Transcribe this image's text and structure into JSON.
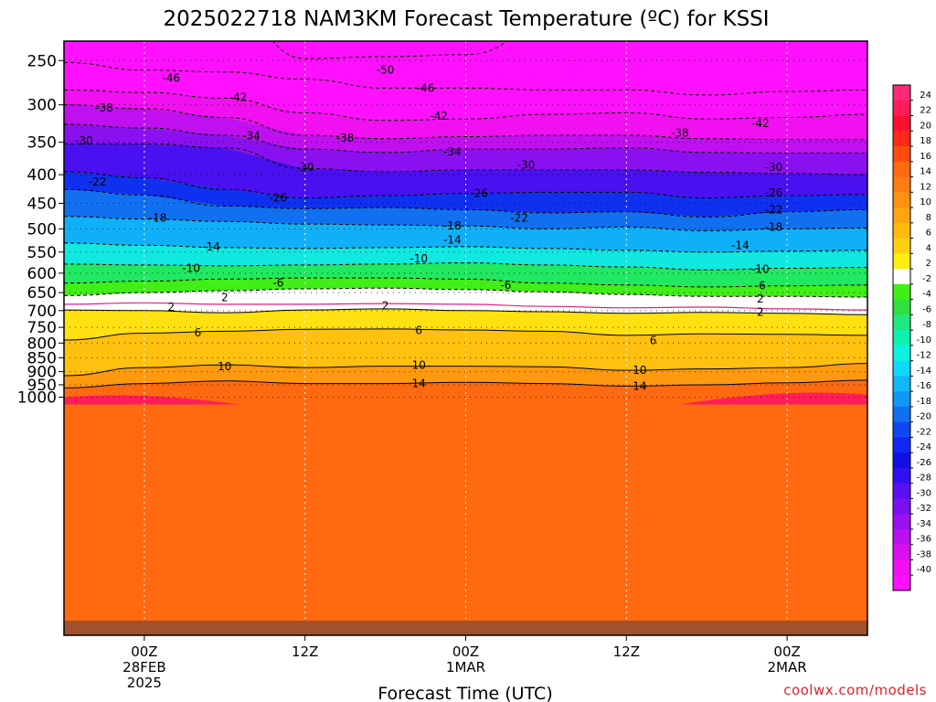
{
  "chart_data": {
    "type": "heatmap",
    "title": "2025022718 NAM3KM Forecast Temperature (ºC) for KSSI",
    "xlabel": "Forecast Time (UTC)",
    "ylabel": "",
    "credit": "coolwx.com/models",
    "y_axis": {
      "scale": "log-pressure",
      "unit": "hPa",
      "ticks": [
        250,
        300,
        350,
        400,
        450,
        500,
        550,
        600,
        650,
        700,
        750,
        800,
        850,
        900,
        950,
        1000
      ],
      "ylim": [
        1040,
        200
      ]
    },
    "x_axis": {
      "xlim_hours": [
        -6,
        54
      ],
      "ticks": [
        {
          "hour": 0,
          "lines": [
            "00Z",
            "28FEB",
            "2025"
          ]
        },
        {
          "hour": 12,
          "lines": [
            "12Z"
          ]
        },
        {
          "hour": 24,
          "lines": [
            "00Z",
            "1MAR"
          ]
        },
        {
          "hour": 36,
          "lines": [
            "12Z"
          ]
        },
        {
          "hour": 48,
          "lines": [
            "00Z",
            "2MAR"
          ]
        }
      ]
    },
    "grid": true,
    "colorbar": {
      "placement": "right",
      "unit": "ºC",
      "labels": [
        "24",
        "22",
        "20",
        "18",
        "16",
        "14",
        "12",
        "10",
        "8",
        "6",
        "4",
        "2",
        "-2",
        "-4",
        "-6",
        "-8",
        "-10",
        "-12",
        "-14",
        "-16",
        "-18",
        "-20",
        "-22",
        "-24",
        "-26",
        "-28",
        "-30",
        "-32",
        "-34",
        "-36",
        "-38",
        "-40"
      ],
      "colors": [
        "#ff2a78",
        "#ff1e5a",
        "#ff1030",
        "#ff2a18",
        "#ff4d10",
        "#ff6a10",
        "#ff7d10",
        "#ff9010",
        "#ffa510",
        "#ffbb10",
        "#ffd010",
        "#ffee10",
        "#ffffff",
        "#40ee18",
        "#30e040",
        "#20e880",
        "#10f0b0",
        "#10f0e0",
        "#10d8f8",
        "#10b8f8",
        "#1098f8",
        "#1070f0",
        "#1048f0",
        "#1028f0",
        "#1010e0",
        "#3010f0",
        "#5a10f0",
        "#7a10f0",
        "#9a10f0",
        "#ba10f0",
        "#d810f0",
        "#f010f0",
        "#ff10ff"
      ]
    },
    "hours": [
      -6,
      0,
      6,
      12,
      18,
      24,
      30,
      36,
      42,
      48,
      54
    ],
    "isotherms": [
      {
        "value": -50,
        "p": [
          null,
          null,
          196,
          248,
          246,
          244,
          220,
          220,
          210,
          205,
          200
        ]
      },
      {
        "value": -46,
        "p": [
          252,
          260,
          262,
          270,
          280,
          280,
          282,
          282,
          288,
          284,
          282
        ]
      },
      {
        "value": -42,
        "p": [
          282,
          285,
          292,
          310,
          320,
          318,
          312,
          310,
          318,
          316,
          312
        ]
      },
      {
        "value": -38,
        "p": [
          300,
          305,
          316,
          340,
          345,
          342,
          340,
          340,
          345,
          346,
          346
        ]
      },
      {
        "value": -34,
        "p": [
          325,
          330,
          340,
          360,
          365,
          360,
          360,
          358,
          365,
          366,
          366
        ]
      },
      {
        "value": -30,
        "p": [
          352,
          352,
          358,
          390,
          395,
          392,
          392,
          392,
          396,
          398,
          400
        ]
      },
      {
        "value": -26,
        "p": [
          395,
          405,
          425,
          440,
          436,
          432,
          430,
          430,
          440,
          436,
          434
        ]
      },
      {
        "value": -22,
        "p": [
          425,
          435,
          455,
          460,
          458,
          462,
          468,
          466,
          476,
          466,
          462
        ]
      },
      {
        "value": -18,
        "p": [
          475,
          480,
          485,
          490,
          492,
          494,
          500,
          496,
          504,
          500,
          498
        ]
      },
      {
        "value": -14,
        "p": [
          530,
          535,
          540,
          542,
          540,
          538,
          542,
          546,
          550,
          548,
          546
        ]
      },
      {
        "value": -10,
        "p": [
          578,
          580,
          582,
          580,
          578,
          575,
          580,
          585,
          592,
          588,
          586
        ]
      },
      {
        "value": -6,
        "p": [
          625,
          620,
          615,
          612,
          612,
          615,
          625,
          630,
          635,
          632,
          630
        ]
      },
      {
        "value": -2,
        "p": [
          658,
          650,
          645,
          640,
          638,
          642,
          648,
          655,
          660,
          660,
          662
        ]
      },
      {
        "value": 0,
        "p": [
          682,
          678,
          682,
          682,
          680,
          682,
          688,
          692,
          690,
          695,
          698
        ]
      },
      {
        "value": 2,
        "p": [
          698,
          700,
          706,
          698,
          695,
          700,
          703,
          708,
          705,
          708,
          712
        ]
      },
      {
        "value": 6,
        "p": [
          790,
          768,
          762,
          756,
          755,
          758,
          762,
          775,
          770,
          772,
          775
        ]
      },
      {
        "value": 10,
        "p": [
          915,
          885,
          875,
          885,
          880,
          880,
          882,
          895,
          890,
          885,
          870
        ]
      },
      {
        "value": 14,
        "p": [
          962,
          945,
          935,
          945,
          945,
          940,
          945,
          955,
          950,
          942,
          932
        ]
      }
    ],
    "label_positions": [
      {
        "text": "-50",
        "hour": 18,
        "p": 260
      },
      {
        "text": "-46",
        "hour": 2,
        "p": 269
      },
      {
        "text": "-46",
        "hour": 21,
        "p": 280
      },
      {
        "text": "-42",
        "hour": 7,
        "p": 291
      },
      {
        "text": "-42",
        "hour": 22,
        "p": 314
      },
      {
        "text": "-42",
        "hour": 46,
        "p": 324
      },
      {
        "text": "-38",
        "hour": -3,
        "p": 304
      },
      {
        "text": "-38",
        "hour": 15,
        "p": 344
      },
      {
        "text": "-38",
        "hour": 40,
        "p": 337
      },
      {
        "text": "-34",
        "hour": 8,
        "p": 341
      },
      {
        "text": "-34",
        "hour": 23,
        "p": 364
      },
      {
        "text": "-30",
        "hour": -4.5,
        "p": 348
      },
      {
        "text": "-30",
        "hour": 12,
        "p": 388
      },
      {
        "text": "-30",
        "hour": 28.5,
        "p": 384
      },
      {
        "text": "-30",
        "hour": 47,
        "p": 388
      },
      {
        "text": "-26",
        "hour": 10,
        "p": 440
      },
      {
        "text": "-26",
        "hour": 25,
        "p": 432
      },
      {
        "text": "-26",
        "hour": 47,
        "p": 431
      },
      {
        "text": "-22",
        "hour": -3.5,
        "p": 412
      },
      {
        "text": "-22",
        "hour": 28,
        "p": 478
      },
      {
        "text": "-22",
        "hour": 47,
        "p": 462
      },
      {
        "text": "-18",
        "hour": 1,
        "p": 478
      },
      {
        "text": "-18",
        "hour": 23,
        "p": 494
      },
      {
        "text": "-18",
        "hour": 47,
        "p": 496
      },
      {
        "text": "-14",
        "hour": 5,
        "p": 538
      },
      {
        "text": "-14",
        "hour": 23,
        "p": 523
      },
      {
        "text": "-14",
        "hour": 44.5,
        "p": 535
      },
      {
        "text": "-10",
        "hour": 3.5,
        "p": 588
      },
      {
        "text": "-10",
        "hour": 20.5,
        "p": 565
      },
      {
        "text": "-10",
        "hour": 46,
        "p": 590
      },
      {
        "text": "-6",
        "hour": 10,
        "p": 624
      },
      {
        "text": "-6",
        "hour": 27,
        "p": 630
      },
      {
        "text": "-6",
        "hour": 46,
        "p": 632
      },
      {
        "text": "2",
        "hour": 6,
        "p": 663
      },
      {
        "text": "2",
        "hour": 46,
        "p": 667
      },
      {
        "text": "2",
        "hour": 2,
        "p": 690
      },
      {
        "text": "2",
        "hour": 18,
        "p": 686
      },
      {
        "text": "2",
        "hour": 46,
        "p": 704
      },
      {
        "text": "6",
        "hour": 4,
        "p": 767
      },
      {
        "text": "6",
        "hour": 20.5,
        "p": 760
      },
      {
        "text": "6",
        "hour": 38,
        "p": 791
      },
      {
        "text": "10",
        "hour": 6,
        "p": 882
      },
      {
        "text": "10",
        "hour": 20.5,
        "p": 877
      },
      {
        "text": "10",
        "hour": 37,
        "p": 895
      },
      {
        "text": "14",
        "hour": 20.5,
        "p": 945
      },
      {
        "text": "14",
        "hour": 37,
        "p": 955
      }
    ]
  }
}
